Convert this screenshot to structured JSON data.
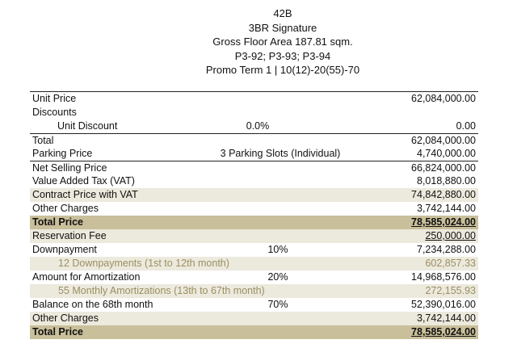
{
  "header": {
    "unit_no": "42B",
    "unit_type": "3BR Signature",
    "gross_floor_area": "Gross Floor Area 187.81 sqm.",
    "parking": "P3-92; P3-93; P3-94",
    "promo_term": "Promo Term 1 | 10(12)-20(55)-70"
  },
  "rows": {
    "unit_price": {
      "label": "Unit Price",
      "amount": "62,084,000.00"
    },
    "discounts": {
      "label": "Discounts"
    },
    "unit_discount": {
      "label": "Unit Discount",
      "pct": "0.0%",
      "amount": "0.00"
    },
    "total": {
      "label": "Total",
      "amount": "62,084,000.00"
    },
    "parking_price": {
      "label": "Parking Price",
      "note": "3 Parking Slots (Individual)",
      "amount": "4,740,000.00"
    },
    "net_selling_price": {
      "label": "Net Selling Price",
      "amount": "66,824,000.00"
    },
    "vat": {
      "label": "Value Added Tax (VAT)",
      "amount": "8,018,880.00"
    },
    "contract_price": {
      "label": "Contract Price with VAT",
      "amount": "74,842,880.00"
    },
    "other_charges_1": {
      "label": "Other Charges",
      "amount": "3,742,144.00"
    },
    "total_price_1": {
      "label": "Total Price",
      "amount": "78,585,024.00"
    },
    "reservation_fee": {
      "label": "Reservation Fee",
      "amount": "250,000.00"
    },
    "downpayment": {
      "label": "Downpayment",
      "pct": "10%",
      "amount": "7,234,288.00"
    },
    "downpayment_installments": {
      "label": "12 Downpayments (1st to 12th month)",
      "amount": "602,857.33"
    },
    "amortization": {
      "label": "Amount for Amortization",
      "pct": "20%",
      "amount": "14,968,576.00"
    },
    "amortization_installments": {
      "label": "55 Monthly Amortizations (13th to 67th month)",
      "amount": "272,155.93"
    },
    "balance": {
      "label": "Balance on the 68th month",
      "pct": "70%",
      "amount": "52,390,016.00"
    },
    "other_charges_2": {
      "label": "Other Charges",
      "amount": "3,742,144.00"
    },
    "total_price_2": {
      "label": "Total Price",
      "amount": "78,585,024.00"
    }
  },
  "colors": {
    "shade": "#ece9dd",
    "total_band": "#c9bf9a",
    "muted_text": "#9b8f63"
  }
}
